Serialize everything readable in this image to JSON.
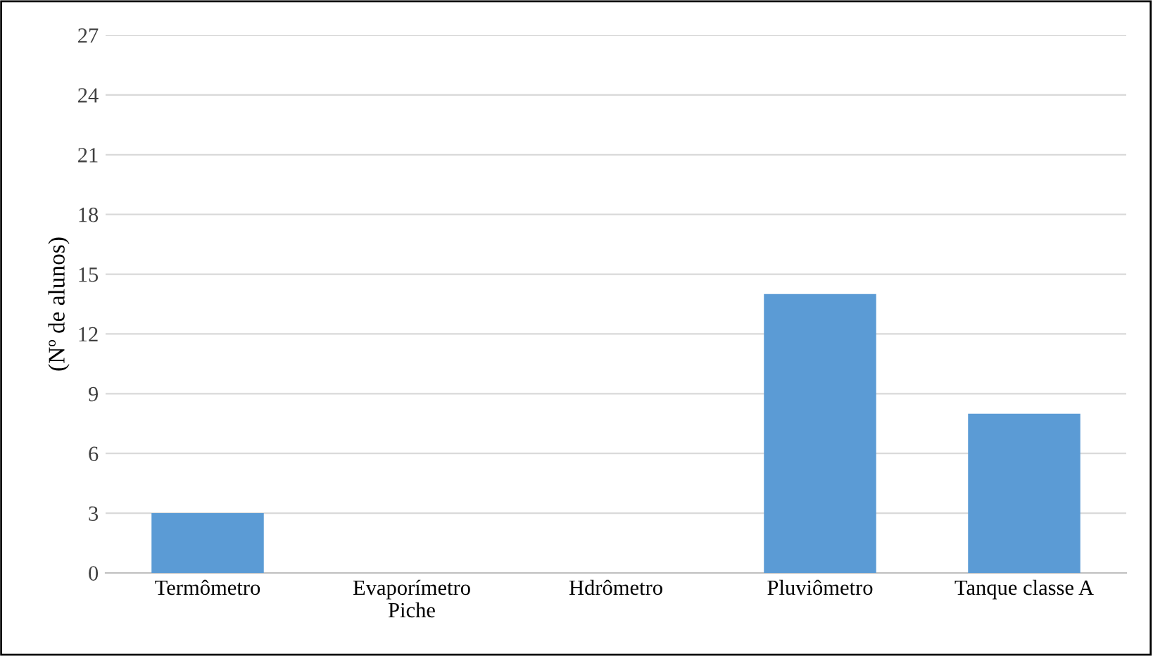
{
  "chart_data": {
    "type": "bar",
    "categories": [
      "Termômetro",
      "Evaporímetro\nPiche",
      "Hdrômetro",
      "Pluviômetro",
      "Tanque classe A"
    ],
    "values": [
      3,
      0,
      0,
      14,
      8
    ],
    "color": "#5b9bd5",
    "ylabel": "(Nº de alunos)",
    "ylim": [
      0,
      27
    ],
    "yticks": [
      0,
      3,
      6,
      9,
      12,
      15,
      18,
      21,
      24,
      27
    ],
    "grid": "y"
  }
}
